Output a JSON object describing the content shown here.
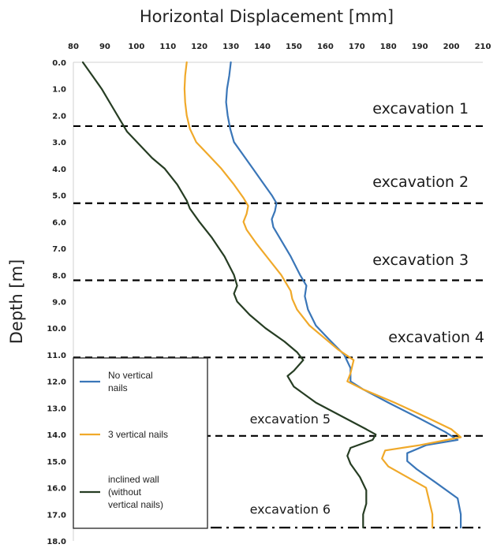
{
  "chart_data": {
    "type": "line",
    "title": "Horizontal Displacement [mm]",
    "xlabel": "Horizontal Displacement [mm]",
    "ylabel": "Depth [m]",
    "xlim": [
      80,
      210
    ],
    "ylim": [
      0,
      18
    ],
    "x_inverted_y_axis": true,
    "x_ticks": [
      "80",
      "90",
      "100",
      "110",
      "120",
      "130",
      "140",
      "150",
      "160",
      "170",
      "180",
      "190",
      "200",
      "210"
    ],
    "y_ticks": [
      "0.0",
      "1.0",
      "2.0",
      "3.0",
      "4.0",
      "5.0",
      "6.0",
      "7.0",
      "8.0",
      "9.0",
      "10.0",
      "11.0",
      "12.0",
      "13.0",
      "14.0",
      "15.0",
      "16.0",
      "17.0",
      "18.0"
    ],
    "grid": false,
    "legend_position": "bottom-left",
    "series": [
      {
        "name": "No vertical nails",
        "color": "#3a76b8",
        "points": [
          [
            130,
            0.0
          ],
          [
            129.5,
            0.5
          ],
          [
            128.8,
            1.0
          ],
          [
            128.5,
            1.5
          ],
          [
            129,
            2.0
          ],
          [
            129.8,
            2.5
          ],
          [
            131,
            3.0
          ],
          [
            134,
            3.5
          ],
          [
            137,
            4.0
          ],
          [
            140,
            4.5
          ],
          [
            143,
            5.0
          ],
          [
            144.5,
            5.3
          ],
          [
            144,
            5.6
          ],
          [
            143,
            5.9
          ],
          [
            143.5,
            6.2
          ],
          [
            146,
            6.7
          ],
          [
            149,
            7.3
          ],
          [
            152,
            8.0
          ],
          [
            154,
            8.4
          ],
          [
            153.5,
            8.8
          ],
          [
            154.5,
            9.3
          ],
          [
            157,
            9.9
          ],
          [
            161,
            10.4
          ],
          [
            166,
            11.0
          ],
          [
            168,
            11.5
          ],
          [
            168,
            12.0
          ],
          [
            172,
            12.3
          ],
          [
            180,
            12.8
          ],
          [
            190,
            13.4
          ],
          [
            198,
            13.9
          ],
          [
            202,
            14.2
          ],
          [
            192,
            14.4
          ],
          [
            186,
            14.7
          ],
          [
            186,
            15.0
          ],
          [
            189,
            15.3
          ],
          [
            195,
            15.8
          ],
          [
            202,
            16.4
          ],
          [
            203,
            17.0
          ],
          [
            203,
            17.5
          ]
        ]
      },
      {
        "name": "3 vertical nails",
        "color": "#f0a92a",
        "points": [
          [
            116,
            0.0
          ],
          [
            115.5,
            0.5
          ],
          [
            115.3,
            1.0
          ],
          [
            115.5,
            1.5
          ],
          [
            116,
            2.0
          ],
          [
            117,
            2.5
          ],
          [
            119,
            3.0
          ],
          [
            123,
            3.5
          ],
          [
            127,
            4.0
          ],
          [
            131,
            4.6
          ],
          [
            134,
            5.1
          ],
          [
            135.5,
            5.4
          ],
          [
            135,
            5.7
          ],
          [
            134,
            6.0
          ],
          [
            135,
            6.3
          ],
          [
            138,
            6.8
          ],
          [
            142,
            7.4
          ],
          [
            146,
            8.0
          ],
          [
            149,
            8.6
          ],
          [
            149.5,
            8.9
          ],
          [
            151,
            9.3
          ],
          [
            155,
            9.9
          ],
          [
            160,
            10.4
          ],
          [
            164,
            10.8
          ],
          [
            169,
            11.2
          ],
          [
            168,
            11.7
          ],
          [
            167,
            12.0
          ],
          [
            172,
            12.3
          ],
          [
            182,
            12.8
          ],
          [
            193,
            13.4
          ],
          [
            200,
            13.8
          ],
          [
            203,
            14.1
          ],
          [
            190,
            14.4
          ],
          [
            179,
            14.6
          ],
          [
            178,
            14.9
          ],
          [
            180,
            15.2
          ],
          [
            186,
            15.6
          ],
          [
            192,
            16.0
          ],
          [
            193,
            16.5
          ],
          [
            194,
            17.0
          ],
          [
            194,
            17.5
          ]
        ]
      },
      {
        "name": "inclined wall (without vertical nails)",
        "color": "#263d23",
        "points": [
          [
            83,
            0.0
          ],
          [
            86,
            0.5
          ],
          [
            89,
            1.0
          ],
          [
            92,
            1.6
          ],
          [
            95,
            2.2
          ],
          [
            97,
            2.6
          ],
          [
            101,
            3.1
          ],
          [
            105,
            3.6
          ],
          [
            109,
            4.0
          ],
          [
            113,
            4.6
          ],
          [
            116,
            5.2
          ],
          [
            117,
            5.5
          ],
          [
            120,
            6.0
          ],
          [
            124,
            6.6
          ],
          [
            128,
            7.3
          ],
          [
            131,
            8.0
          ],
          [
            132,
            8.4
          ],
          [
            131,
            8.7
          ],
          [
            132,
            9.0
          ],
          [
            136,
            9.5
          ],
          [
            141,
            10.0
          ],
          [
            147,
            10.5
          ],
          [
            151,
            10.9
          ],
          [
            153,
            11.2
          ],
          [
            150,
            11.6
          ],
          [
            148,
            11.8
          ],
          [
            150,
            12.2
          ],
          [
            157,
            12.8
          ],
          [
            165,
            13.3
          ],
          [
            173,
            13.8
          ],
          [
            176,
            14.0
          ],
          [
            175,
            14.2
          ],
          [
            168,
            14.5
          ],
          [
            167,
            14.8
          ],
          [
            168,
            15.1
          ],
          [
            171,
            15.6
          ],
          [
            173,
            16.1
          ],
          [
            173,
            16.6
          ],
          [
            172,
            17.0
          ],
          [
            172,
            17.5
          ]
        ]
      }
    ],
    "reference_lines": [
      {
        "depth": 2.4,
        "style": "dashed"
      },
      {
        "depth": 5.3,
        "style": "dashed"
      },
      {
        "depth": 8.2,
        "style": "dashed"
      },
      {
        "depth": 11.1,
        "style": "dashed"
      },
      {
        "depth": 14.05,
        "style": "dashed"
      },
      {
        "depth": 17.5,
        "style": "dash-dot"
      }
    ],
    "annotations": [
      {
        "text": "excavation 1",
        "x": 175,
        "depth": 1.75,
        "size": "large"
      },
      {
        "text": "excavation 2",
        "x": 175,
        "depth": 4.5,
        "size": "large"
      },
      {
        "text": "excavation 3",
        "x": 175,
        "depth": 7.45,
        "size": "large"
      },
      {
        "text": "excavation 4",
        "x": 180,
        "depth": 10.35,
        "size": "large"
      },
      {
        "text": "excavation 5",
        "x": 136,
        "depth": 13.4,
        "size": "small"
      },
      {
        "text": "excavation 6",
        "x": 136,
        "depth": 16.8,
        "size": "small"
      }
    ],
    "legend": {
      "items": [
        {
          "label_lines": [
            "No vertical",
            "nails"
          ],
          "color": "#3a76b8"
        },
        {
          "label_lines": [
            "3 vertical nails"
          ],
          "color": "#f0a92a"
        },
        {
          "label_lines": [
            "inclined wall",
            "(without",
            "vertical nails)"
          ],
          "color": "#263d23"
        }
      ]
    }
  }
}
